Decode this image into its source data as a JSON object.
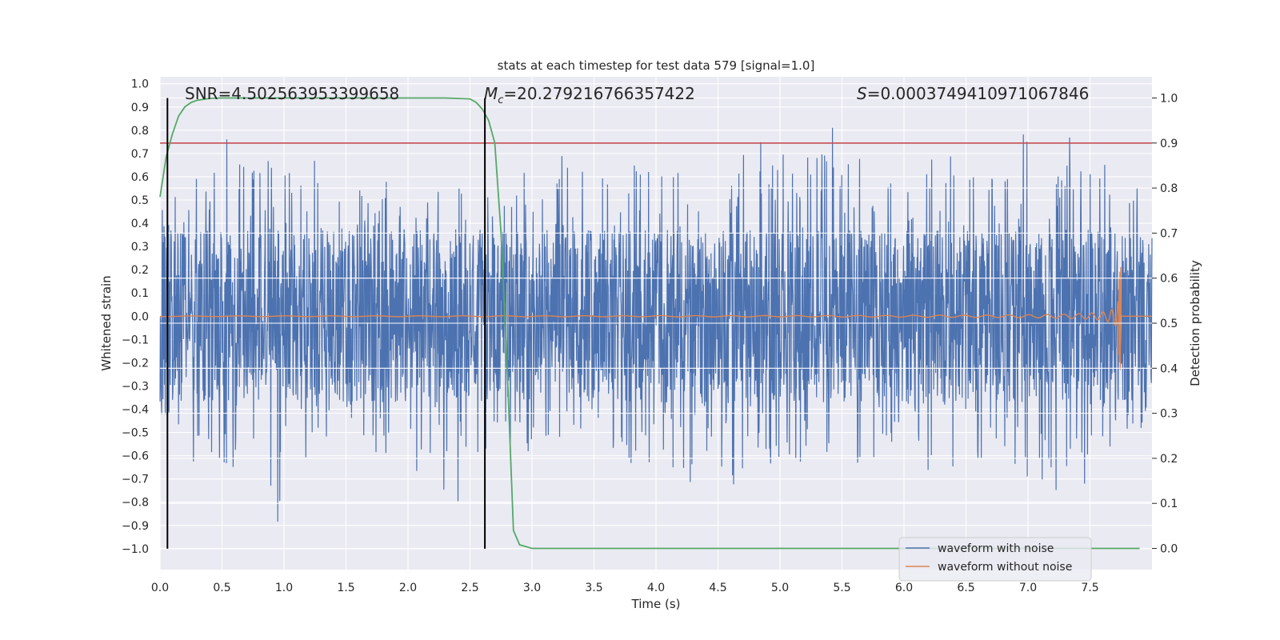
{
  "chart_data": {
    "type": "line",
    "title": "stats at each timestep for test data 579 [signal=1.0]",
    "xlabel": "Time (s)",
    "ylabel_left": "Whitened strain",
    "ylabel_right": "Detection probability",
    "xlim": [
      0.0,
      8.0
    ],
    "ylim_left": [
      -1.09,
      1.03
    ],
    "ylim_right": [
      -0.047,
      1.047
    ],
    "x_ticks": [
      "0.0",
      "0.5",
      "1.0",
      "1.5",
      "2.0",
      "2.5",
      "3.0",
      "3.5",
      "4.0",
      "4.5",
      "5.0",
      "5.5",
      "6.0",
      "6.5",
      "7.0",
      "7.5"
    ],
    "y_left_ticks": [
      "1.0",
      "0.9",
      "0.8",
      "0.7",
      "0.6",
      "0.5",
      "0.4",
      "0.3",
      "0.2",
      "0.1",
      "0.0",
      "−0.1",
      "−0.2",
      "−0.3",
      "−0.4",
      "−0.5",
      "−0.6",
      "−0.7",
      "−0.8",
      "−0.9",
      "−1.0"
    ],
    "y_right_ticks": [
      "1.0",
      "0.9",
      "0.8",
      "0.7",
      "0.6",
      "0.5",
      "0.4",
      "0.3",
      "0.2",
      "0.1",
      "0.0"
    ],
    "grid": true,
    "legend_position": "lower right",
    "annotations": {
      "snr": "SNR=4.502563953399658",
      "mc_symbol": "M",
      "mc_sub": "c",
      "mc_value": "=20.279216766357422",
      "s_symbol": "S",
      "s_value": "=0.0003749410971067846"
    },
    "threshold": 0.9,
    "vlines_x": [
      0.06,
      2.62
    ],
    "series": [
      {
        "name": "waveform with noise",
        "color": "#4c72b0",
        "envelope": {
          "x": [
            0.0,
            0.5,
            1.0,
            1.05,
            1.5,
            2.0,
            2.5,
            2.6,
            3.0,
            3.35,
            3.5,
            4.0,
            4.5,
            5.0,
            5.5,
            6.0,
            6.5,
            7.0,
            7.5,
            7.65,
            8.0
          ],
          "upper": [
            0.48,
            0.85,
            0.78,
            0.94,
            0.58,
            0.64,
            0.7,
            0.66,
            0.63,
            0.9,
            0.7,
            0.82,
            0.64,
            0.8,
            0.84,
            0.6,
            0.78,
            0.8,
            0.76,
            0.79,
            0.52
          ],
          "lower": [
            -0.5,
            -0.74,
            -0.99,
            -0.65,
            -0.58,
            -0.66,
            -0.87,
            -0.62,
            -0.65,
            -0.6,
            -0.7,
            -0.79,
            -0.79,
            -0.7,
            -0.71,
            -0.76,
            -0.7,
            -0.8,
            -0.72,
            -0.58,
            -0.45
          ]
        }
      },
      {
        "name": "waveform without noise",
        "color": "#dd8452",
        "chirp": {
          "t_merge": 7.75,
          "peak": 0.23,
          "trough": -0.26
        }
      },
      {
        "name": "detection probability",
        "color": "#55a868",
        "x": [
          0.0,
          0.05,
          0.1,
          0.15,
          0.2,
          0.25,
          0.3,
          0.4,
          0.5,
          1.0,
          1.5,
          2.0,
          2.3,
          2.5,
          2.55,
          2.6,
          2.65,
          2.7,
          2.75,
          2.8,
          2.85,
          2.9,
          3.0,
          4.0,
          5.0,
          6.0,
          7.0,
          7.9
        ],
        "y": [
          0.78,
          0.87,
          0.92,
          0.96,
          0.98,
          0.99,
          0.995,
          0.999,
          1.0,
          1.0,
          1.0,
          1.0,
          1.0,
          0.998,
          0.99,
          0.975,
          0.95,
          0.9,
          0.7,
          0.4,
          0.04,
          0.008,
          0.0,
          0.0,
          0.0,
          0.0,
          0.0,
          0.0
        ]
      }
    ]
  }
}
